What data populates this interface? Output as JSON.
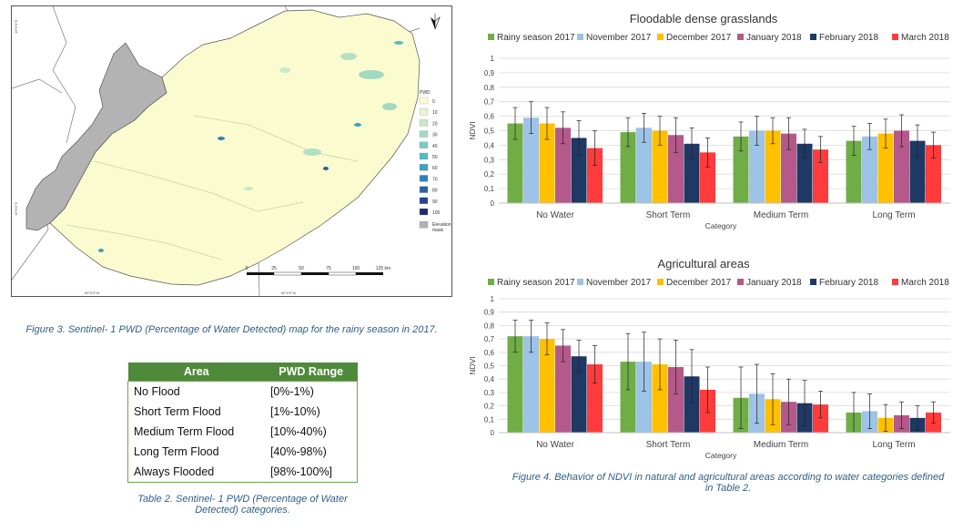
{
  "map": {
    "legend_title": "PWD",
    "legend_items": [
      {
        "label": "0",
        "color": "#fbfbd0"
      },
      {
        "label": "10",
        "color": "#e8f4cf"
      },
      {
        "label": "20",
        "color": "#c9e8c4"
      },
      {
        "label": "30",
        "color": "#a3d9bf"
      },
      {
        "label": "40",
        "color": "#7bcbbd"
      },
      {
        "label": "50",
        "color": "#54b9c1"
      },
      {
        "label": "60",
        "color": "#3aa0c5"
      },
      {
        "label": "70",
        "color": "#2d82bb"
      },
      {
        "label": "80",
        "color": "#2863a8"
      },
      {
        "label": "90",
        "color": "#234592"
      },
      {
        "label": "100",
        "color": "#1c2c74"
      }
    ],
    "elevation_label_1": "Elevation",
    "elevation_label_2": "mask",
    "elevation_color": "#b3b3b3",
    "scale_labels": [
      "0",
      "25",
      "50",
      "75",
      "100",
      "125 km"
    ],
    "lat_label_top": "10°0'0\"S",
    "lat_label_mid": "15°0'0\"S",
    "lon_label_left": "65°0'0\"W",
    "lon_label_right": "60°0'0\"W"
  },
  "figure3_caption": "Figure 3. Sentinel- 1 PWD (Percentage of Water Detected) map for the rainy season in 2017.",
  "table2": {
    "headers": [
      "Area",
      "PWD Range"
    ],
    "rows": [
      [
        "No Flood",
        "[0%-1%)"
      ],
      [
        "Short Term Flood",
        "[1%-10%)"
      ],
      [
        "Medium Term Flood",
        "[10%-40%)"
      ],
      [
        "Long Term Flood",
        "[40%-98%)"
      ],
      [
        "Always Flooded",
        "[98%-100%]"
      ]
    ],
    "header_color": "#4f8a3a"
  },
  "table2_caption": "Table 2. Sentinel- 1 PWD (Percentage of Water Detected) categories.",
  "figure4_caption": "Figure 4. Behavior of NDVI in natural and agricultural areas according to water categories defined in Table 2.",
  "chart_data": [
    {
      "type": "bar",
      "title": "Floodable dense grasslands",
      "xlabel": "Category",
      "ylabel": "NDVI",
      "ylim": [
        0,
        1
      ],
      "yticks": [
        "0",
        "0,1",
        "0,2",
        "0,3",
        "0,4",
        "0,5",
        "0,6",
        "0,7",
        "0,8",
        "0,9",
        "1"
      ],
      "categories": [
        "No Water",
        "Short Term",
        "Medium Term",
        "Long Term"
      ],
      "legend_position": "top",
      "series": [
        {
          "name": "Rainy season 2017",
          "color": "#70ad47",
          "values": [
            0.55,
            0.49,
            0.46,
            0.43
          ],
          "errors": [
            0.11,
            0.1,
            0.1,
            0.1
          ]
        },
        {
          "name": "November 2017",
          "color": "#9dc3e6",
          "values": [
            0.59,
            0.52,
            0.5,
            0.46
          ],
          "errors": [
            0.11,
            0.1,
            0.1,
            0.09
          ]
        },
        {
          "name": "December 2017",
          "color": "#ffc000",
          "values": [
            0.55,
            0.5,
            0.5,
            0.48
          ],
          "errors": [
            0.11,
            0.1,
            0.09,
            0.1
          ]
        },
        {
          "name": "January 2018",
          "color": "#b4598a",
          "values": [
            0.52,
            0.47,
            0.48,
            0.5
          ],
          "errors": [
            0.11,
            0.12,
            0.11,
            0.11
          ]
        },
        {
          "name": "February 2018",
          "color": "#1f3864",
          "values": [
            0.45,
            0.41,
            0.41,
            0.43
          ],
          "errors": [
            0.12,
            0.11,
            0.1,
            0.11
          ]
        },
        {
          "name": "March 2018",
          "color": "#ff3b3b",
          "values": [
            0.38,
            0.35,
            0.37,
            0.4
          ],
          "errors": [
            0.12,
            0.1,
            0.09,
            0.09
          ]
        }
      ]
    },
    {
      "type": "bar",
      "title": "Agricultural areas",
      "xlabel": "Category",
      "ylabel": "NDVI",
      "ylim": [
        0,
        1
      ],
      "yticks": [
        "0",
        "0,1",
        "0,2",
        "0,3",
        "0,4",
        "0,5",
        "0,6",
        "0,7",
        "0,8",
        "0,9",
        "1"
      ],
      "categories": [
        "No Water",
        "Short Term",
        "Medium Term",
        "Long Term"
      ],
      "legend_position": "top",
      "series": [
        {
          "name": "Rainy season 2017",
          "color": "#70ad47",
          "values": [
            0.72,
            0.53,
            0.26,
            0.15
          ],
          "errors": [
            0.12,
            0.21,
            0.23,
            0.15
          ]
        },
        {
          "name": "November 2017",
          "color": "#9dc3e6",
          "values": [
            0.72,
            0.53,
            0.29,
            0.16
          ],
          "errors": [
            0.12,
            0.22,
            0.22,
            0.13
          ]
        },
        {
          "name": "December 2017",
          "color": "#ffc000",
          "values": [
            0.7,
            0.51,
            0.25,
            0.11
          ],
          "errors": [
            0.12,
            0.19,
            0.19,
            0.1
          ]
        },
        {
          "name": "January 2018",
          "color": "#b4598a",
          "values": [
            0.65,
            0.49,
            0.23,
            0.13
          ],
          "errors": [
            0.12,
            0.2,
            0.17,
            0.1
          ]
        },
        {
          "name": "February 2018",
          "color": "#1f3864",
          "values": [
            0.57,
            0.42,
            0.22,
            0.11
          ],
          "errors": [
            0.12,
            0.2,
            0.17,
            0.09
          ]
        },
        {
          "name": "March 2018",
          "color": "#ff3b3b",
          "values": [
            0.51,
            0.32,
            0.21,
            0.15
          ],
          "errors": [
            0.14,
            0.17,
            0.1,
            0.08
          ]
        }
      ]
    }
  ]
}
